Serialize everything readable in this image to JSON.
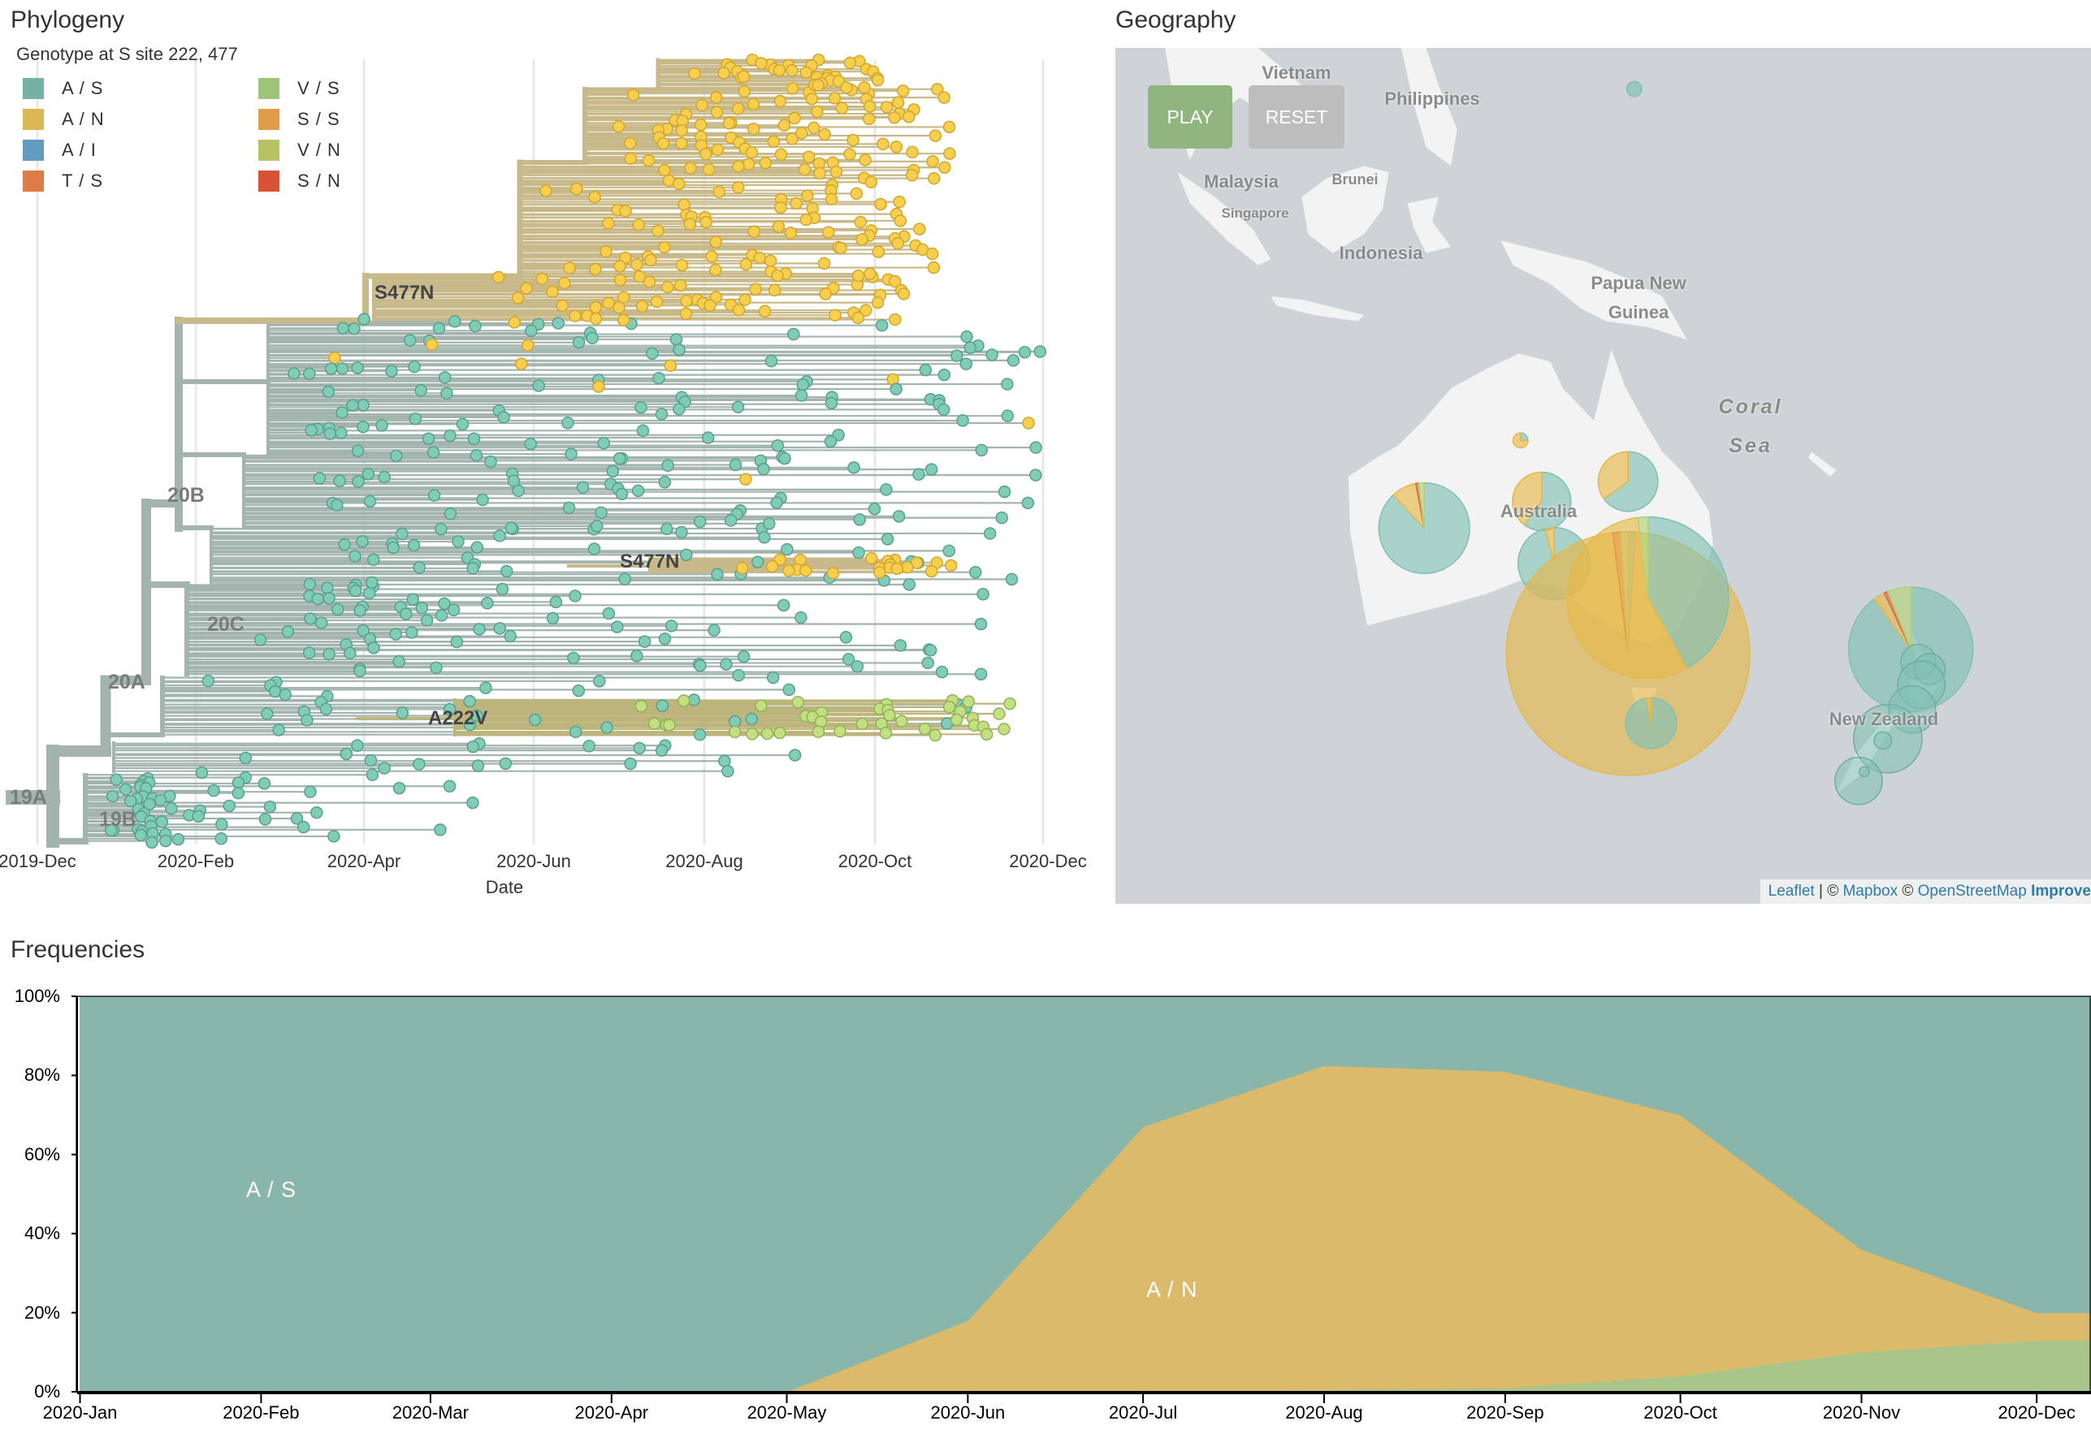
{
  "phylogeny": {
    "title": "Phylogeny",
    "legend_title": "Genotype at S site 222, 477",
    "legend": [
      {
        "label": "A / S",
        "color": "#80c0b3"
      },
      {
        "label": "A / N",
        "color": "#efc75d"
      },
      {
        "label": "A / I",
        "color": "#6aa8cf"
      },
      {
        "label": "T / S",
        "color": "#f0874a"
      },
      {
        "label": "V / S",
        "color": "#aed580"
      },
      {
        "label": "S / S",
        "color": "#f2aa52"
      },
      {
        "label": "V / N",
        "color": "#c7d36d"
      },
      {
        "label": "S / N",
        "color": "#eb5a3b"
      }
    ],
    "clades": [
      "19A",
      "19B",
      "20A",
      "20B",
      "20C"
    ],
    "mutations": [
      "S477N",
      "S477N",
      "A222V"
    ],
    "x_ticks": [
      "2019-Dec",
      "2020-Feb",
      "2020-Apr",
      "2020-Jun",
      "2020-Aug",
      "2020-Oct",
      "2020-Dec"
    ],
    "x_label": "Date"
  },
  "geography": {
    "title": "Geography",
    "play_label": "PLAY",
    "reset_label": "RESET",
    "labels": [
      "Vietnam",
      "Philippines",
      "Malaysia",
      "Brunei",
      "Singapore",
      "Indonesia",
      "Papua New",
      "Guinea",
      "Coral",
      "Sea",
      "Australia",
      "New Zealand"
    ],
    "attribution": {
      "leaflet": "Leaflet",
      "sep": " | © ",
      "mapbox": "Mapbox",
      "copy": " © ",
      "osm": "OpenStreetMap",
      "improve": "Improve"
    },
    "pies": [
      {
        "A / S": 0.88,
        "A / N": 0.09,
        "S / N": 0.01,
        "V / S": 0.02
      },
      {
        "A / S": 0.25,
        "A / N": 0.75,
        "S / N": 0,
        "V / S": 0
      },
      {
        "A / S": 0.6,
        "A / N": 0.4,
        "S / N": 0,
        "V / S": 0
      },
      {
        "A / S": 0.65,
        "A / N": 0.35,
        "S / N": 0,
        "V / S": 0
      },
      {
        "A / S": 0.96,
        "A / N": 0.04,
        "S / N": 0,
        "V / S": 0
      },
      {
        "A / S": 0.01,
        "A / N": 0.97,
        "S / N": 0.01,
        "V / S": 0.01
      },
      {
        "A / S": 0.42,
        "A / N": 0.56,
        "S / N": 0,
        "V / S": 0.02
      },
      {
        "A / S": 0.97,
        "A / N": 0.03,
        "S / N": 0,
        "V / S": 0
      },
      {
        "A / S": 0.9,
        "A / N": 0.03,
        "S / N": 0.01,
        "V / S": 0.06
      },
      {
        "A / S": 1,
        "A / N": 0,
        "S / N": 0,
        "V / S": 0
      }
    ]
  },
  "frequencies": {
    "title": "Frequencies"
  },
  "chart_data": {
    "type": "area",
    "title": "Frequencies",
    "categories": [
      "2020-Jan",
      "2020-Feb",
      "2020-Mar",
      "2020-Apr",
      "2020-May",
      "2020-Jun",
      "2020-Jul",
      "2020-Aug",
      "2020-Sep",
      "2020-Oct",
      "2020-Nov",
      "2020-Dec"
    ],
    "y_ticks": [
      "0%",
      "20%",
      "40%",
      "60%",
      "80%",
      "100%"
    ],
    "ylim": [
      0,
      100
    ],
    "stacked": true,
    "series": [
      {
        "name": "V / S",
        "color": "#a9c58a",
        "values": [
          0,
          0,
          0,
          0,
          0,
          0,
          0,
          0.5,
          1,
          4,
          10,
          13
        ]
      },
      {
        "name": "A / N",
        "color": "#dbba6c",
        "values": [
          0,
          0,
          0,
          0,
          0,
          18,
          67,
          82,
          80,
          66,
          26,
          7
        ]
      },
      {
        "name": "A / S",
        "color": "#89b6ab",
        "values": [
          100,
          100,
          100,
          100,
          100,
          82,
          33,
          17.5,
          19,
          30,
          64,
          80
        ]
      }
    ],
    "stream_labels": {
      "as": "A / S",
      "an": "A / N"
    }
  }
}
